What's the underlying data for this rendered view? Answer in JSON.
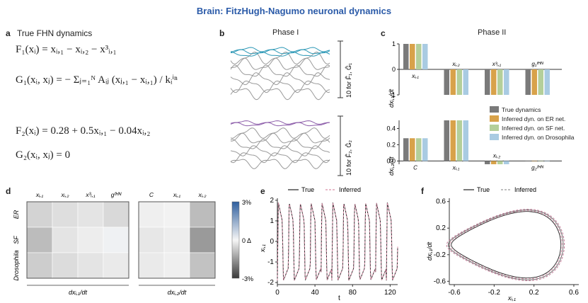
{
  "title": "Brain: FitzHugh-Nagumo neuronal dynamics",
  "colors": {
    "true": "#7a7a7a",
    "er": "#d8a24a",
    "sf": "#b4cf9a",
    "dros": "#a9cbe2",
    "teal": "#2d98b6",
    "purple": "#8a5aa8",
    "pink": "#d98fa8"
  },
  "panel_a": {
    "label": "a",
    "title": "True FHN dynamics",
    "eq1": "F₁(xᵢ) = xᵢ,₁ − xᵢ,₂ − x³ᵢ,₁",
    "eq2": "G₁(xᵢ, xⱼ) = − Σⱼ₌₁ᴺ Aᵢⱼ (xⱼ,₁ − xᵢ,₁) / kᵢⁱⁿ",
    "eq3": "F₂(xᵢ) = 0.28 + 0.5xᵢ,₁ − 0.04xᵢ,₂",
    "eq4": "G₂(xᵢ, xⱼ) = 0"
  },
  "panel_b": {
    "label": "b",
    "title": "Phase I",
    "scale1": "10 for F̂₁, Ĝ₁",
    "scale2": "10 for F̂₂, Ĝ₂"
  },
  "panel_c": {
    "label": "c",
    "title": "Phase II",
    "top": {
      "ylabel": "dxᵢ,₁/dt",
      "ylim": [
        -1,
        1
      ],
      "ticks": [
        "1",
        "0",
        "-1"
      ],
      "categories": [
        "xᵢ,₁",
        "xᵢ,₂",
        "x³ᵢ,₁",
        "g₁ᶠᴴᴺ"
      ],
      "series": [
        {
          "name": "True dynamics",
          "values": [
            1,
            -1,
            -1,
            -1
          ]
        },
        {
          "name": "Inferred dyn. on ER net.",
          "values": [
            1,
            -1,
            -1,
            -1
          ]
        },
        {
          "name": "Inferred dyn. on SF net.",
          "values": [
            1,
            -1,
            -1,
            -1
          ]
        },
        {
          "name": "Inferred dyn. on Drosophila",
          "values": [
            1,
            -1,
            -1,
            -1
          ]
        }
      ]
    },
    "bottom": {
      "ylabel": "dxᵢ,₂/dt",
      "ylim": [
        -0.04,
        0.5
      ],
      "ticks": [
        "0.4",
        "0.2",
        "0.0"
      ],
      "categories": [
        "C",
        "xᵢ,₁",
        "xᵢ,₂",
        "g₂ᶠᴴᴺ"
      ],
      "series": [
        {
          "name": "True dynamics",
          "values": [
            0.28,
            0.5,
            -0.04,
            0
          ]
        },
        {
          "name": "Inferred dyn. on ER net.",
          "values": [
            0.28,
            0.5,
            -0.04,
            0
          ]
        },
        {
          "name": "Inferred dyn. on SF net.",
          "values": [
            0.28,
            0.5,
            -0.04,
            0
          ]
        },
        {
          "name": "Inferred dyn. on Drosophila",
          "values": [
            0.28,
            0.5,
            -0.04,
            0
          ]
        }
      ]
    },
    "legend": [
      "True dynamics",
      "Inferred dyn. on ER net.",
      "Inferred dyn. on SF net.",
      "Inferred dyn. on Drosophila"
    ]
  },
  "panel_d": {
    "label": "d",
    "col_headers_1": [
      "xᵢ,₁",
      "xᵢ,₂",
      "x³ᵢ,₁",
      "gᶠᴴᴺ"
    ],
    "col_headers_2": [
      "C",
      "xᵢ,₁",
      "xᵢ,₂"
    ],
    "rows": [
      "ER",
      "SF",
      "Drosophila"
    ],
    "group1": "dxᵢ,₁/dt",
    "group2": "dxᵢ,₂/dt",
    "colorbar_ticks": [
      "3%",
      "0 Δ",
      "-3%"
    ],
    "values": [
      [
        -0.6,
        -0.4,
        -0.3,
        -0.5,
        -0.1,
        -0.05,
        -1.0
      ],
      [
        -1.0,
        -0.3,
        -0.15,
        0.1,
        -0.25,
        -0.15,
        -1.6
      ],
      [
        -0.7,
        -0.45,
        -0.3,
        -0.2,
        -0.2,
        -0.1,
        -0.9
      ]
    ]
  },
  "panel_e": {
    "label": "e",
    "legend_true": "True",
    "legend_inferred": "Inferred",
    "ylabel": "xᵢ,₁",
    "xlabel": "t",
    "xticks": [
      "0",
      "40",
      "80",
      "120"
    ],
    "yticks": [
      "2",
      "1",
      "0",
      "-1",
      "-2"
    ]
  },
  "panel_f": {
    "label": "f",
    "legend_true": "True",
    "legend_inferred": "Inferred",
    "ylabel": "dxᵢ,₁/dt",
    "xlabel": "xᵢ,₁",
    "xticks": [
      "-0.6",
      "-0.2",
      "0.2",
      "0.6"
    ],
    "yticks": [
      "0.6",
      "0.2",
      "-0.2",
      "-0.6"
    ]
  }
}
